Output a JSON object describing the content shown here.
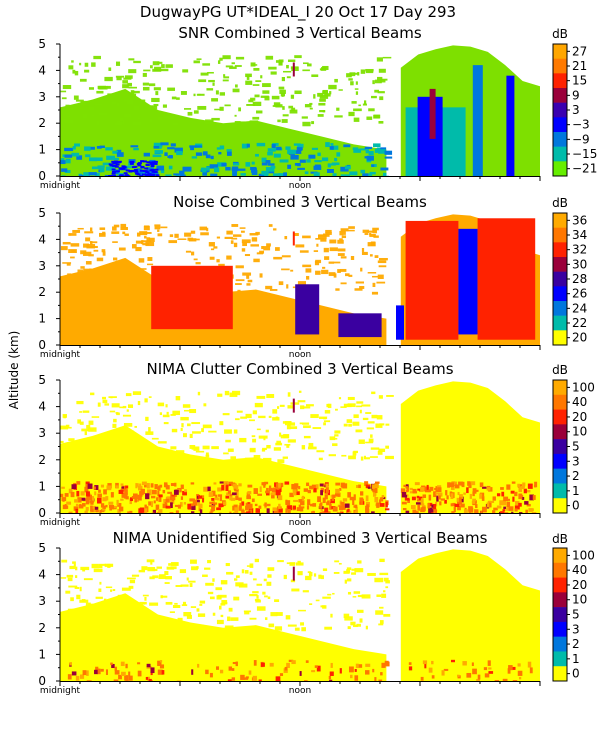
{
  "title": "DugwayPG UT*IDEAL_I  20 Oct 17 Day 293",
  "ylabel": "Altitude (km)",
  "colors": {
    "axis": "#000000",
    "background": "#ffffff"
  },
  "chart_data": [
    {
      "type": "heatmap",
      "title": "SNR Combined 3 Vertical Beams",
      "xlabel_ticks": [
        "midnight",
        "noon"
      ],
      "ylabel": "Altitude (km)",
      "ylim": [
        0,
        5
      ],
      "yticks": [
        "0",
        "1",
        "2",
        "3",
        "4",
        "5"
      ],
      "colorbar": {
        "unit": "dB",
        "labels": [
          "27",
          "21",
          "15",
          "9",
          "3",
          "−3",
          "−9",
          "−15",
          "−21"
        ],
        "colors": [
          "#ffa600",
          "#ff7a00",
          "#ff2200",
          "#9a003a",
          "#3a00b0",
          "#0000ff",
          "#0077dd",
          "#00bbaa",
          "#66ee00"
        ]
      },
      "background_color": "#7ee000",
      "features": [
        {
          "note": "dense echo below ~1 km through the day",
          "color": "#00bbaa"
        },
        {
          "note": "strong echo column after ~20h",
          "color": "#0000ff"
        }
      ]
    },
    {
      "type": "heatmap",
      "title": "Noise Combined 3 Vertical Beams",
      "xlabel_ticks": [
        "midnight",
        "noon"
      ],
      "ylabel": "Altitude (km)",
      "ylim": [
        0,
        5
      ],
      "yticks": [
        "0",
        "1",
        "2",
        "3",
        "4",
        "5"
      ],
      "colorbar": {
        "unit": "dB",
        "labels": [
          "36",
          "34",
          "32",
          "30",
          "28",
          "26",
          "24",
          "22",
          "20"
        ],
        "colors": [
          "#ffaa00",
          "#ff7700",
          "#ff2200",
          "#9a003a",
          "#3a00a0",
          "#0000ff",
          "#0077dd",
          "#00bbaa",
          "#ffff00"
        ]
      },
      "background_color": "#ffaa00"
    },
    {
      "type": "heatmap",
      "title": "NIMA Clutter Combined 3 Vertical Beams",
      "xlabel_ticks": [
        "midnight",
        "noon"
      ],
      "ylabel": "Altitude (km)",
      "ylim": [
        0,
        5
      ],
      "yticks": [
        "0",
        "1",
        "2",
        "3",
        "4",
        "5"
      ],
      "colorbar": {
        "unit": "dB",
        "labels": [
          "100",
          "40",
          "20",
          "10",
          "5",
          "3",
          "2",
          "1",
          "0"
        ],
        "colors": [
          "#ffaa00",
          "#ff7700",
          "#ff2200",
          "#9a003a",
          "#3a00a0",
          "#0000ff",
          "#0077dd",
          "#00bbaa",
          "#ffff00"
        ]
      },
      "background_color": "#ffff00"
    },
    {
      "type": "heatmap",
      "title": "NIMA Unidentified Sig Combined 3 Vertical Beams",
      "xlabel_ticks": [
        "midnight",
        "noon"
      ],
      "ylabel": "Altitude (km)",
      "ylim": [
        0,
        5
      ],
      "yticks": [
        "0",
        "1",
        "2",
        "3",
        "4",
        "5"
      ],
      "colorbar": {
        "unit": "dB",
        "labels": [
          "100",
          "40",
          "20",
          "10",
          "5",
          "3",
          "2",
          "1",
          "0"
        ],
        "colors": [
          "#ffaa00",
          "#ff7700",
          "#ff2200",
          "#9a003a",
          "#3a00a0",
          "#0000ff",
          "#0077dd",
          "#00bbaa",
          "#ffff00"
        ]
      },
      "background_color": "#ffff00"
    }
  ]
}
